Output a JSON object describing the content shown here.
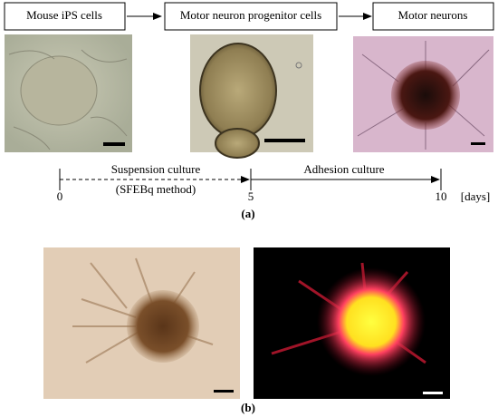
{
  "panel_a": {
    "stages": [
      "Mouse iPS cells",
      "Motor neuron progenitor cells",
      "Motor neurons"
    ],
    "timeline": {
      "suspension": "Suspension culture",
      "method": "(SFEBq method)",
      "adhesion": "Adhesion culture",
      "ticks": [
        "0",
        "5",
        "10"
      ],
      "unit": "[days]"
    },
    "label": "(a)"
  },
  "panel_b": {
    "label": "(b)"
  }
}
